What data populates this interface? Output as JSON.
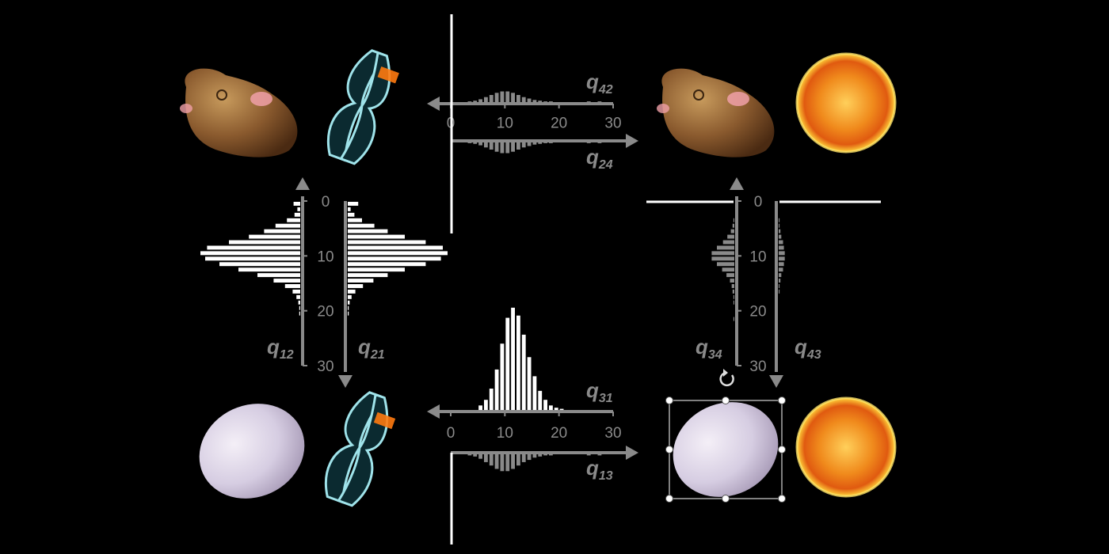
{
  "colors": {
    "background": "#000000",
    "axis": "#8a8a8a",
    "bars": "#ffffff",
    "embryo": "#8a5a2e",
    "egg": "#dcd4e6",
    "chromosome": "#9fe3ea",
    "chromosome_mark": "#ff7a10",
    "sun": "#ff9a18"
  },
  "states": [
    {
      "name": "embryo-chromosome",
      "icons": [
        "embryo-icon",
        "chromosome-icon"
      ]
    },
    {
      "name": "embryo-sun",
      "icons": [
        "embryo-icon",
        "sun-icon"
      ]
    },
    {
      "name": "egg-chromosome",
      "icons": [
        "egg-icon",
        "chromosome-icon"
      ]
    },
    {
      "name": "egg-sun",
      "icons": [
        "egg-icon",
        "sun-icon"
      ]
    }
  ],
  "chart_data": [
    {
      "id": "top",
      "type": "bar",
      "orientation": "horizontal-axis",
      "axis_ticks": [
        "0",
        "10",
        "20",
        "30"
      ],
      "xlim": [
        0,
        30
      ],
      "series": [
        {
          "label_main": "q",
          "label_sub": "42",
          "direction": "left",
          "side": "above",
          "color": "#8a8a8a",
          "values": [
            0,
            0,
            0,
            0.01,
            0.02,
            0.04,
            0.07,
            0.1,
            0.13,
            0.15,
            0.15,
            0.13,
            0.1,
            0.07,
            0.05,
            0.03,
            0.02,
            0.01,
            0.01,
            0,
            0,
            0,
            0,
            0,
            0,
            0.01,
            0,
            0.01,
            0,
            0
          ]
        },
        {
          "label_main": "q",
          "label_sub": "24",
          "direction": "right",
          "side": "below",
          "color": "#8a8a8a",
          "values": [
            0,
            0,
            0,
            0.01,
            0.02,
            0.04,
            0.07,
            0.1,
            0.13,
            0.15,
            0.15,
            0.13,
            0.1,
            0.07,
            0.05,
            0.03,
            0.02,
            0.01,
            0.01,
            0,
            0,
            0,
            0,
            0,
            0,
            0.01,
            0,
            0.01,
            0,
            0
          ]
        }
      ],
      "spike": {
        "value_at": 0,
        "side": "both"
      }
    },
    {
      "id": "left",
      "type": "bar",
      "orientation": "vertical-axis",
      "axis_ticks": [
        "0",
        "10",
        "20",
        "30"
      ],
      "ylim": [
        0,
        30
      ],
      "series": [
        {
          "label_main": "q",
          "label_sub": "12",
          "direction": "up",
          "side": "left",
          "color": "#ffffff",
          "values": [
            0.07,
            0.03,
            0.06,
            0.14,
            0.26,
            0.38,
            0.54,
            0.75,
            0.98,
            1.05,
            1.0,
            0.85,
            0.65,
            0.45,
            0.28,
            0.16,
            0.08,
            0.04,
            0.02,
            0.01,
            0.01,
            0,
            0,
            0,
            0,
            0,
            0,
            0,
            0,
            0
          ]
        },
        {
          "label_main": "q",
          "label_sub": "21",
          "direction": "down",
          "side": "right",
          "color": "#ffffff",
          "values": [
            0.11,
            0.03,
            0.07,
            0.15,
            0.28,
            0.42,
            0.6,
            0.82,
            1.0,
            1.05,
            0.98,
            0.82,
            0.6,
            0.42,
            0.27,
            0.16,
            0.08,
            0.04,
            0.02,
            0.01,
            0.01,
            0,
            0,
            0,
            0,
            0,
            0,
            0,
            0,
            0
          ]
        }
      ]
    },
    {
      "id": "right",
      "type": "bar",
      "orientation": "vertical-axis",
      "axis_ticks": [
        "0",
        "10",
        "20",
        "30"
      ],
      "ylim": [
        0,
        30
      ],
      "series": [
        {
          "label_main": "q",
          "label_sub": "34",
          "direction": "up",
          "side": "left",
          "color": "#8a8a8a",
          "values": [
            0,
            0,
            0,
            0.01,
            0.02,
            0.04,
            0.08,
            0.13,
            0.2,
            0.26,
            0.26,
            0.2,
            0.14,
            0.09,
            0.05,
            0.03,
            0.02,
            0.01,
            0.01,
            0,
            0,
            0.01,
            0,
            0,
            0,
            0,
            0,
            0,
            0,
            0
          ]
        },
        {
          "label_main": "q",
          "label_sub": "43",
          "direction": "down",
          "side": "right",
          "color": "#8a8a8a",
          "values": [
            0,
            0,
            0,
            0.01,
            0.01,
            0.02,
            0.03,
            0.05,
            0.06,
            0.07,
            0.07,
            0.06,
            0.05,
            0.03,
            0.02,
            0.01,
            0.01,
            0,
            0,
            0,
            0,
            0,
            0,
            0,
            0,
            0,
            0,
            0,
            0,
            0
          ]
        }
      ],
      "spike": {
        "value_at": 0,
        "side": "both"
      }
    },
    {
      "id": "bottom",
      "type": "bar",
      "orientation": "horizontal-axis",
      "axis_ticks": [
        "0",
        "10",
        "20",
        "30"
      ],
      "xlim": [
        0,
        30
      ],
      "series": [
        {
          "label_main": "q",
          "label_sub": "31",
          "direction": "left",
          "side": "above",
          "color": "#ffffff",
          "values": [
            0,
            0,
            0,
            0,
            0,
            0.04,
            0.09,
            0.19,
            0.36,
            0.59,
            0.82,
            0.91,
            0.84,
            0.67,
            0.47,
            0.3,
            0.17,
            0.09,
            0.04,
            0.02,
            0.01,
            0,
            0,
            0,
            0,
            0,
            0,
            0,
            0,
            0
          ]
        },
        {
          "label_main": "q",
          "label_sub": "13",
          "direction": "right",
          "side": "below",
          "color": "#8a8a8a",
          "values": [
            0,
            0,
            0,
            0.01,
            0.02,
            0.04,
            0.07,
            0.1,
            0.13,
            0.15,
            0.15,
            0.13,
            0.1,
            0.07,
            0.05,
            0.03,
            0.02,
            0.01,
            0.01,
            0,
            0,
            0,
            0,
            0,
            0,
            0.01,
            0,
            0.01,
            0,
            0
          ]
        }
      ],
      "spike": {
        "value_at": 0,
        "side": "below"
      }
    }
  ]
}
